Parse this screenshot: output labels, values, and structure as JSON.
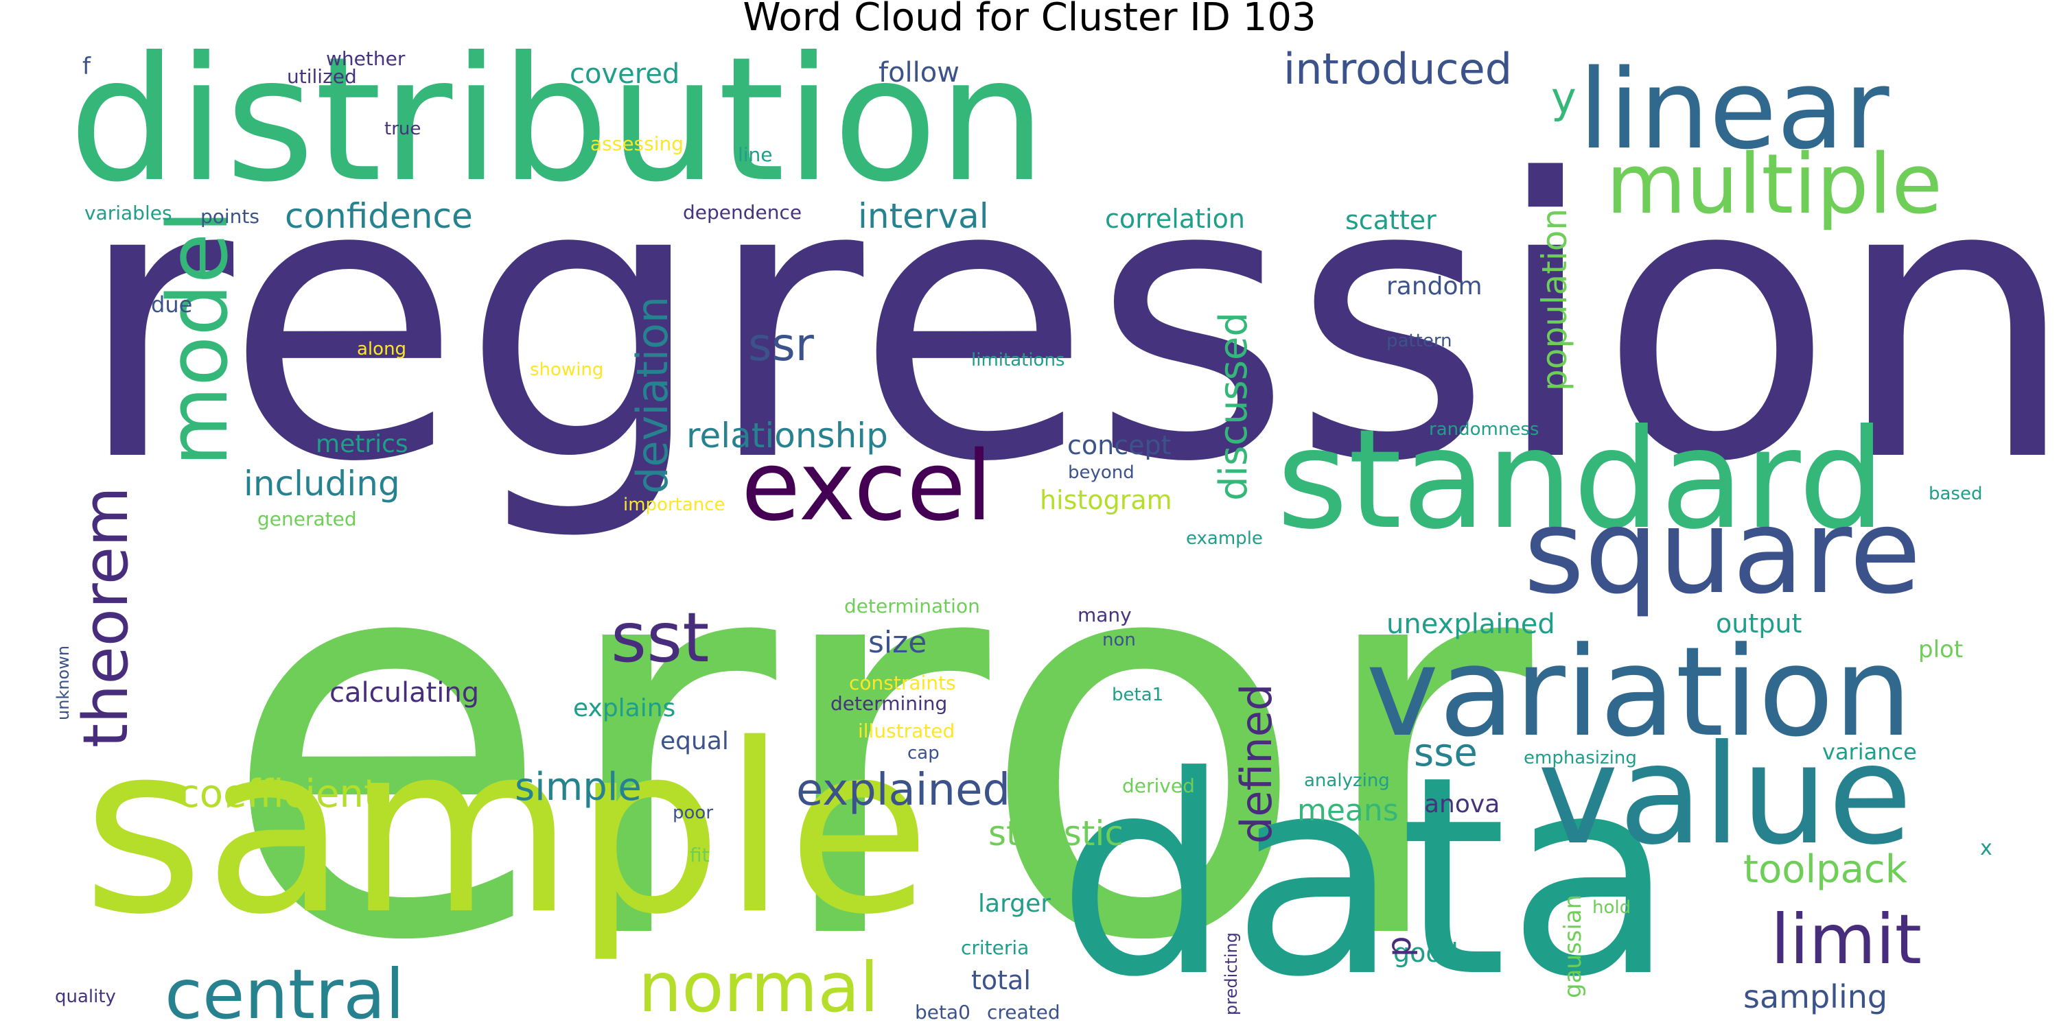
{
  "title": "Word Cloud for Cluster ID 103",
  "colors": {
    "deep_purple": "#440154",
    "indigo": "#472d7b",
    "purple": "#46337e",
    "blue": "#31688e",
    "steel": "#3b528b",
    "teal": "#26828e",
    "green_teal": "#1f9e89",
    "green": "#35b779",
    "light_green": "#6ece58",
    "lime": "#b5de2b",
    "yellow": "#fde725"
  },
  "words": [
    {
      "text": "regression"
    },
    {
      "text": "error"
    },
    {
      "text": "distribution"
    },
    {
      "text": "sample"
    },
    {
      "text": "data"
    },
    {
      "text": "standard"
    },
    {
      "text": "linear"
    },
    {
      "text": "value"
    },
    {
      "text": "variation"
    },
    {
      "text": "square"
    },
    {
      "text": "multiple"
    },
    {
      "text": "excel"
    },
    {
      "text": "model"
    },
    {
      "text": "theorem"
    },
    {
      "text": "central"
    },
    {
      "text": "normal"
    },
    {
      "text": "limit"
    },
    {
      "text": "sst"
    },
    {
      "text": "coefficient"
    },
    {
      "text": "explained"
    },
    {
      "text": "deviation"
    },
    {
      "text": "introduced"
    },
    {
      "text": "ssr"
    },
    {
      "text": "defined"
    },
    {
      "text": "discussed"
    },
    {
      "text": "simple"
    },
    {
      "text": "toolpack"
    },
    {
      "text": "sse"
    },
    {
      "text": "population"
    },
    {
      "text": "confidence"
    },
    {
      "text": "relationship"
    },
    {
      "text": "statistic"
    },
    {
      "text": "interval"
    },
    {
      "text": "including"
    },
    {
      "text": "sampling"
    },
    {
      "text": "y"
    },
    {
      "text": "calculating"
    },
    {
      "text": "means"
    },
    {
      "text": "size"
    },
    {
      "text": "covered"
    },
    {
      "text": "follow"
    },
    {
      "text": "correlation"
    },
    {
      "text": "scatter"
    },
    {
      "text": "concept"
    },
    {
      "text": "histogram"
    },
    {
      "text": "metrics"
    },
    {
      "text": "random"
    },
    {
      "text": "unexplained"
    },
    {
      "text": "output"
    },
    {
      "text": "explains"
    },
    {
      "text": "larger"
    },
    {
      "text": "total"
    },
    {
      "text": "good"
    },
    {
      "text": "equal"
    },
    {
      "text": "anova"
    },
    {
      "text": "variance"
    },
    {
      "text": "plot"
    },
    {
      "text": "p"
    },
    {
      "text": "due"
    },
    {
      "text": "f"
    },
    {
      "text": "gaussian"
    },
    {
      "text": "whether"
    },
    {
      "text": "utilized"
    },
    {
      "text": "true"
    },
    {
      "text": "assessing"
    },
    {
      "text": "line"
    },
    {
      "text": "variables"
    },
    {
      "text": "points"
    },
    {
      "text": "dependence"
    },
    {
      "text": "along"
    },
    {
      "text": "showing"
    },
    {
      "text": "limitations"
    },
    {
      "text": "pattern"
    },
    {
      "text": "randomness"
    },
    {
      "text": "beyond"
    },
    {
      "text": "importance"
    },
    {
      "text": "generated"
    },
    {
      "text": "based"
    },
    {
      "text": "example"
    },
    {
      "text": "determination"
    },
    {
      "text": "many"
    },
    {
      "text": "non"
    },
    {
      "text": "constraints"
    },
    {
      "text": "determining"
    },
    {
      "text": "beta1"
    },
    {
      "text": "illustrated"
    },
    {
      "text": "cap"
    },
    {
      "text": "emphasizing"
    },
    {
      "text": "analyzing"
    },
    {
      "text": "derived"
    },
    {
      "text": "poor"
    },
    {
      "text": "fit"
    },
    {
      "text": "hold"
    },
    {
      "text": "criteria"
    },
    {
      "text": "predicting"
    },
    {
      "text": "quality"
    },
    {
      "text": "beta0"
    },
    {
      "text": "created"
    },
    {
      "text": "unknown"
    },
    {
      "text": "x"
    }
  ]
}
